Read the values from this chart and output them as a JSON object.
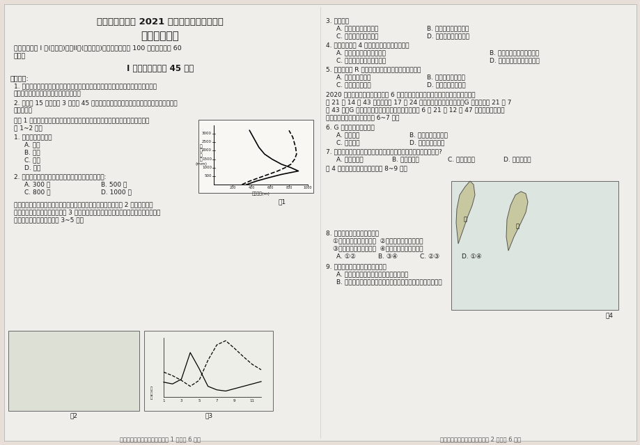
{
  "bg_color": "#e8e0d8",
  "paper_color": "#f0eeea",
  "title1": "天津市耀华中学 2021 届高三年级第一次月考",
  "title2": "地理学科试卷",
  "intro_line1": "本试卷分为第 I 卷(选择题)和第II卷(非选择题)两部分，满分为 100 分，考试用时 60",
  "intro_line2": "分钟。",
  "section1": "I 卷（选择题，共 45 分）",
  "notes_header": "注意事项:",
  "note1_line1": "1. 每小题选出答案后，用铅笔把地理答题卡上对应题目的答案标号涂黑。如需改动，",
  "note1_line2": "用橡皮擦干净后，再选涂其他答案标号。",
  "note2_line1": "2. 本卷共 15 题，每题 3 分，共 45 分。在每题列出的四个选项中，只有一项是最符合题",
  "note2_line2": "目要求的。",
  "q12_intro_line1": "读图 1 我国某山地西坡（实线）和东坡（虚线）年降水量随高度变化示意图，回",
  "q12_intro_line2": "答 1~2 题。",
  "q1": "1. 该山地最可能位于",
  "q1a": "A. 湖南",
  "q1b": "B. 上海",
  "q1c": "C. 青海",
  "q1d": "D. 河北",
  "q2": "2. 该山东、西坡降水量相差最大处的海拔高度大约是:",
  "q2a": "A. 300 米",
  "q2b": "B. 500 米",
  "q2c": "C. 800 米",
  "q2d": "D. 1000 米",
  "q35_intro_line1": "洞里萨湖位于湄公河下游平原，其水文特征深受湄公河的影响。图 2 示意湄公河流",
  "q35_intro_line2": "域部分地区及洞里萨湖位置。图 3 示意洞里萨湖主湖区与洪泛区含沙量和湖水多年平均",
  "q35_intro_line3": "体积的年节变化。据此完成 3~5 题。",
  "q3": "3. 洞里萨湖",
  "q3a": "A. 雨季湖水含沙量增大",
  "q3b": "B. 热季洪泛区面积最大",
  "q3c": "C. 旱季主湖区输沙量大",
  "q3d": "D. 湖面积年季节变化大",
  "q4": "4. 影响洞里萨湖 4 月含沙量最大的主要原因是",
  "q4a": "A. 湖面风较大、湖泊水位低",
  "q4b": "B. 湖水流速快、流域降水少",
  "q4c": "C. 湖水流速慢、湖泊水位低",
  "q4d": "D. 湖面风较大、流域降水多",
  "q5": "5. 若在湄公河 R 处修建大型水利工程将导致洞里萨湖",
  "q5a": "A. 生物多样性增加",
  "q5b": "B. 泥沙淤积总量减少",
  "q5c": "C. 洪泛区面积扩大",
  "q5d": "D. 水温年际变化减小",
  "q67_intro_line1": "2020 年最有意义的天象是发生在 6 月份的日环食。我国厦门市日环食开始于北京时",
  "q67_intro_line2": "间 21 日 14 时 43 分，结束于 17 时 24 分，当厦门日环食开始时，G 国的区时为 21 日 7",
  "q67_intro_line3": "时 43 分。G 国北部地区此次日环食开始于北京时间 6 月 21 日 12 时 47 分，当地观测者可",
  "q67_intro_line4": "以看到环食日出的奇景。回答 6~7 题。",
  "q6": "6. G 国北部的植被类型为",
  "q6a": "A. 热带荒漠",
  "q6b": "B. 亚热带常绿阔叶林",
  "q6c": "C. 热带雨林",
  "q6d": "D. 温带落叶阔叶林",
  "q7": "7. 厦门观测者观测过程中应如何调整天文望远镜镜筒的朝向和高度?",
  "q7a": "A. 向东、升高",
  "q7b": "B. 向东、降低",
  "q7c": "C. 向西、升高",
  "q7d": "D. 向西、降低",
  "q89_intro": "图 4 是世界两岛示图，读图完成 8~9 题。",
  "q8": "8. 关于两岛的说法，正确的是",
  "q8_opt1": "①两岛山脉走向大致相同  ②两岛地形都是东陡西缓",
  "q8_opt2": "③甲岛的比例尺小于乙岛  ④两岛都处于板块边界处",
  "q8a": "A. ①②",
  "q8b": "B. ③④",
  "q8c": "C. ②③",
  "q8d": "D. ①④",
  "q9": "9. 关于两岛气候的叙述，错误的是",
  "q9a": "A. 甲岛东部受地形和暖流影响，降水丰富",
  "q9b": "B. 乙岛东部受信风和暖流影响，降水丰富，形成热带雨林气候",
  "footer_left": "高三第一次月考地理学科试题第 1 页（共 6 页）",
  "footer_right": "高三第一次月考地理学科试题第 2 页（共 6 页）"
}
